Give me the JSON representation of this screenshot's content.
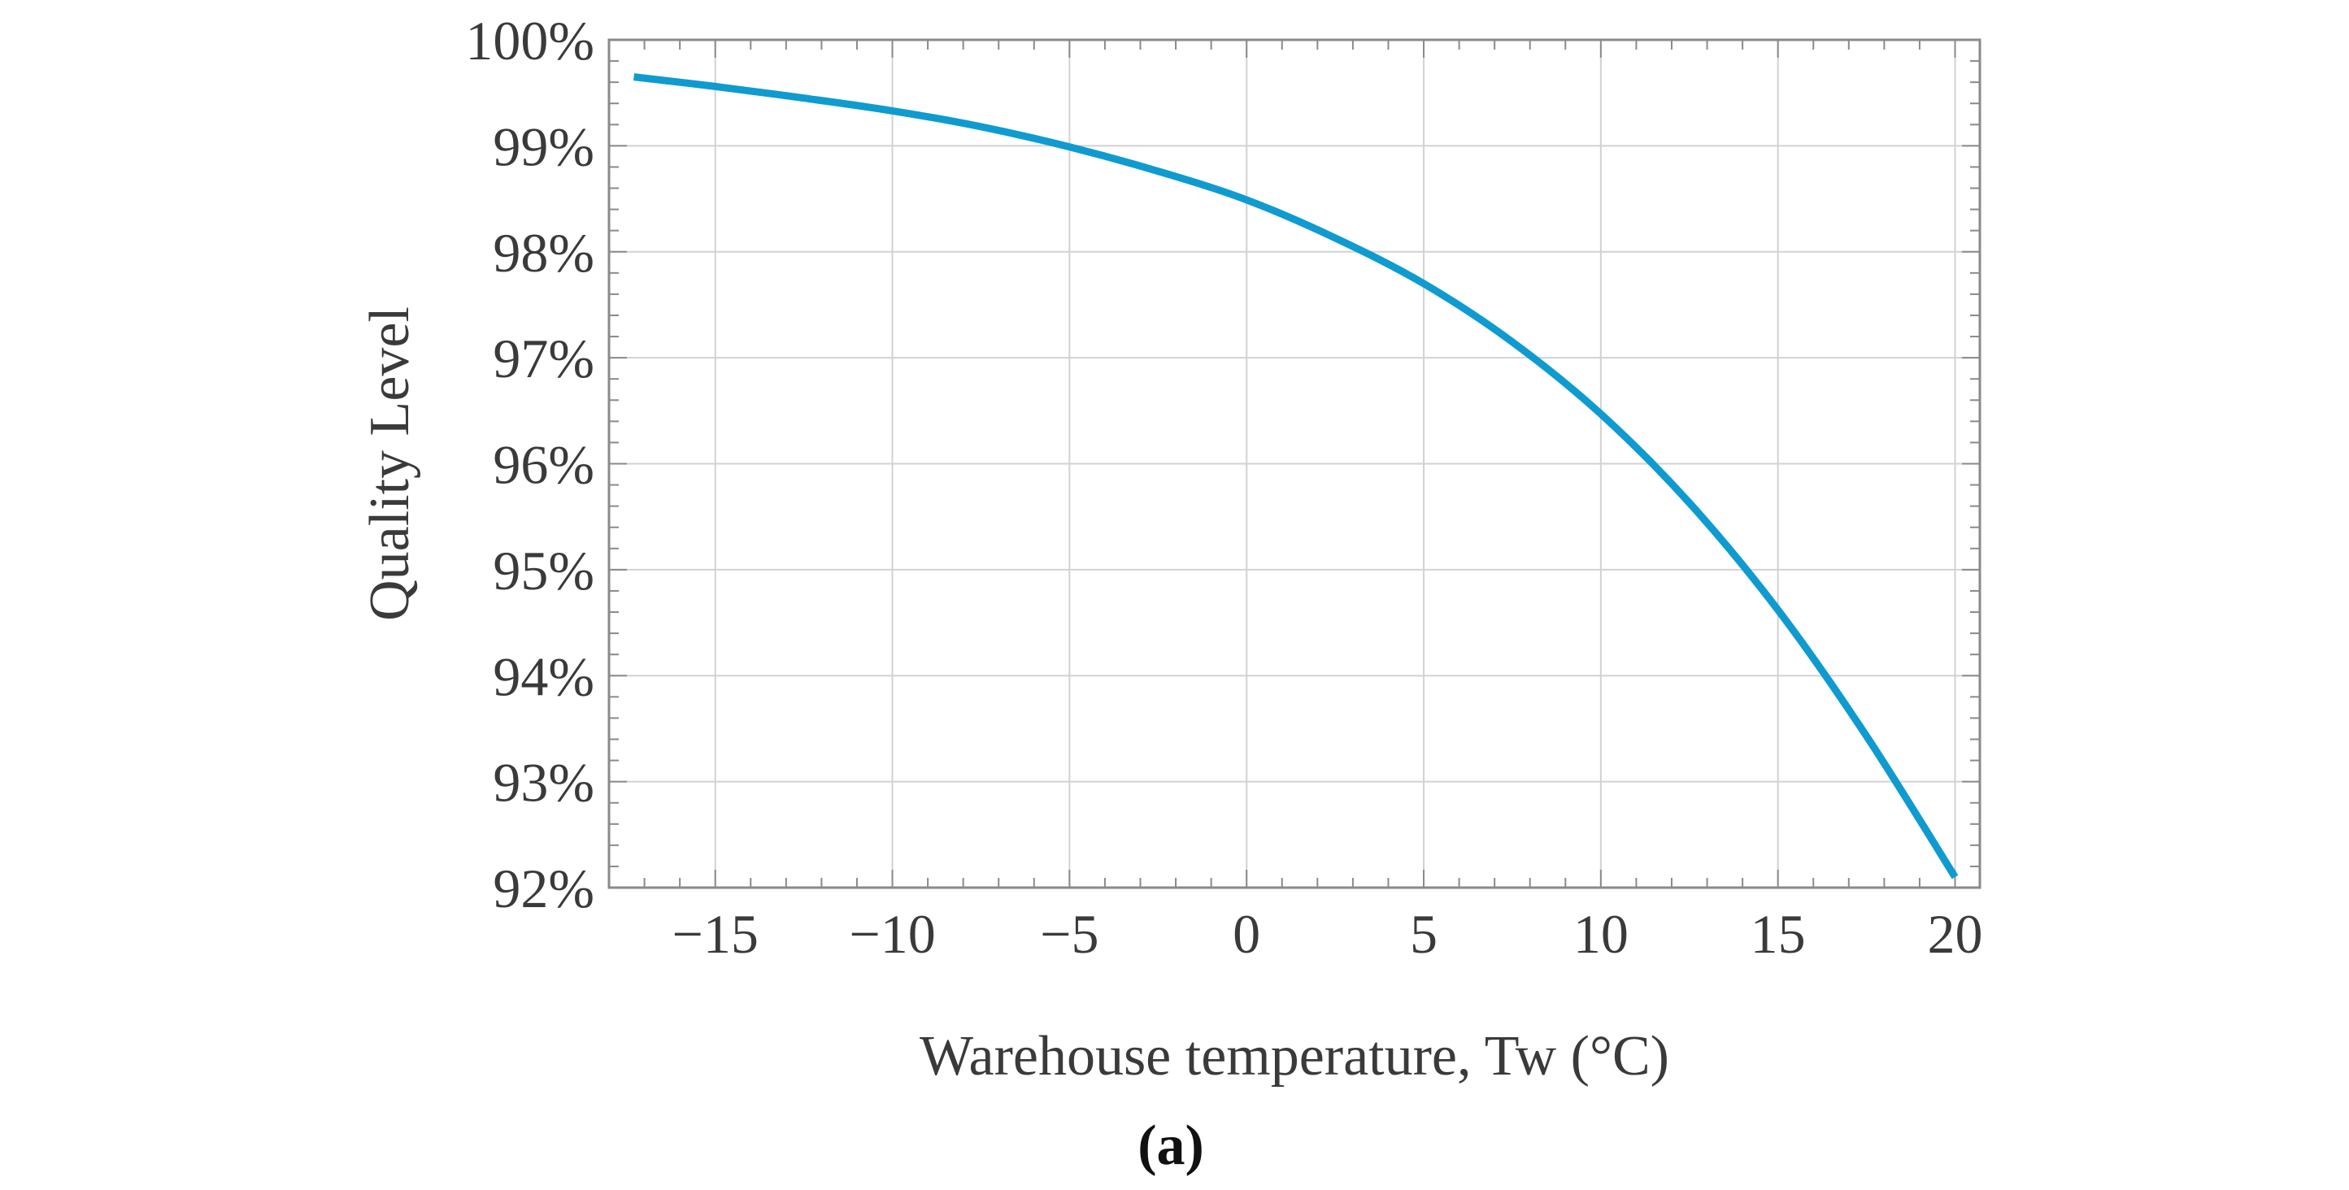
{
  "chart_data": {
    "type": "line",
    "title": "",
    "xlabel": "Warehouse temperature, Tw (°C)",
    "ylabel": "Quality Level",
    "caption": "(a)",
    "xlim": [
      -18,
      20.7
    ],
    "ylim": [
      92,
      100
    ],
    "x_ticks": [
      -15,
      -10,
      -5,
      0,
      5,
      10,
      15,
      20
    ],
    "x_tick_labels": [
      "−15",
      "−10",
      "−5",
      "0",
      "5",
      "10",
      "15",
      "20"
    ],
    "y_ticks": [
      92,
      93,
      94,
      95,
      96,
      97,
      98,
      99,
      100
    ],
    "y_tick_labels": [
      "92%",
      "93%",
      "94%",
      "95%",
      "96%",
      "97%",
      "98%",
      "99%",
      "100%"
    ],
    "grid": true,
    "line_color": "#0f9bd0",
    "series": [
      {
        "x": [
          -17.3,
          -15,
          -12.5,
          -10,
          -7.5,
          -5,
          -2.5,
          0,
          2.5,
          5,
          7.5,
          10,
          12.5,
          15,
          17.5,
          20
        ],
        "y": [
          99.65,
          99.56,
          99.45,
          99.33,
          99.18,
          98.99,
          98.76,
          98.49,
          98.13,
          97.7,
          97.15,
          96.47,
          95.63,
          94.62,
          93.43,
          92.1
        ]
      }
    ]
  }
}
